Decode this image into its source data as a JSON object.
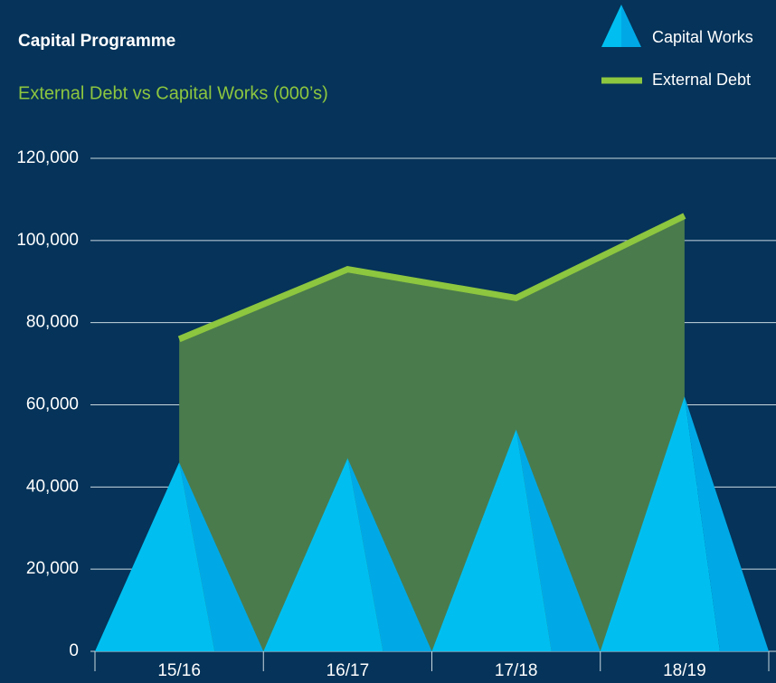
{
  "chart_data": {
    "type": "area-pyramid",
    "title": "Capital Programme",
    "subtitle": "External Debt vs Capital Works (000’s)",
    "categories": [
      "15/16",
      "16/17",
      "17/18",
      "18/19"
    ],
    "series": [
      {
        "name": "Capital Works",
        "color": "#00bff0",
        "values": [
          46000,
          47000,
          54000,
          62000
        ]
      },
      {
        "name": "External Debt",
        "color": "#8dc63f",
        "values": [
          76000,
          93000,
          86000,
          106000
        ]
      }
    ],
    "ylim": [
      0,
      120000
    ],
    "yticks": [
      0,
      {
        "value": 20000,
        "label": "20,000"
      },
      {
        "value": 40000,
        "label": "40,000"
      },
      {
        "value": 60000,
        "label": "60,000"
      },
      {
        "value": 80000,
        "label": "80,000"
      },
      {
        "value": 100000,
        "label": "100,000"
      },
      {
        "value": 120000,
        "label": "120,000"
      }
    ],
    "grid": true,
    "legend": "top-right"
  }
}
